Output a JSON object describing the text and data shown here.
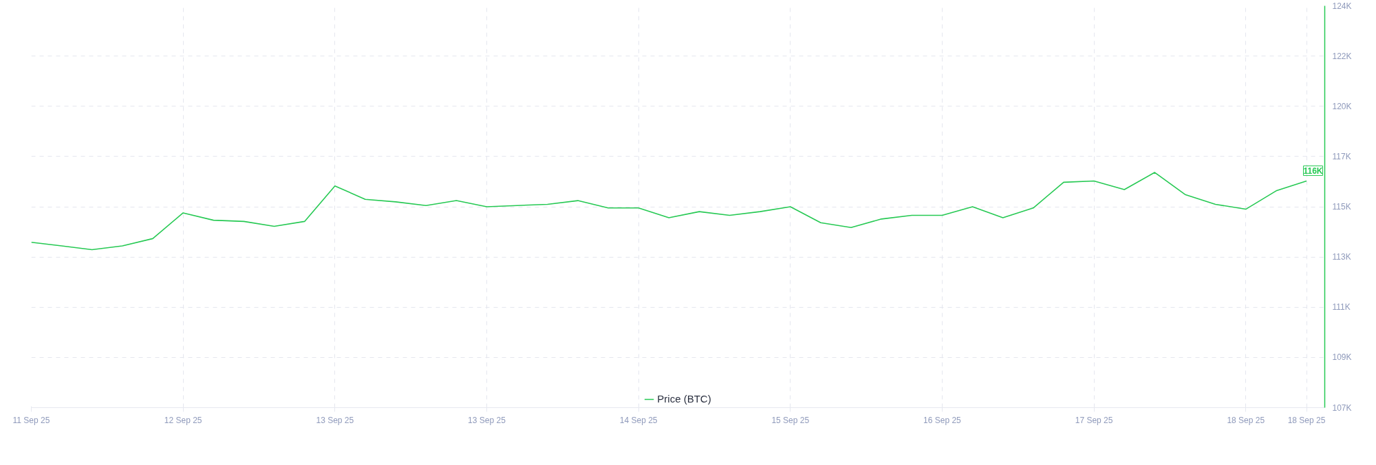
{
  "chart_data": {
    "type": "line",
    "categories": [
      "11 Sep 25",
      null,
      null,
      null,
      null,
      "12 Sep 25",
      null,
      null,
      null,
      null,
      "13 Sep 25",
      null,
      null,
      null,
      null,
      "13 Sep 25",
      null,
      null,
      null,
      null,
      "14 Sep 25",
      null,
      null,
      null,
      null,
      "15 Sep 25",
      null,
      null,
      null,
      null,
      "16 Sep 25",
      null,
      null,
      null,
      null,
      "17 Sep 25",
      null,
      null,
      null,
      null,
      "18 Sep 25",
      null,
      "18 Sep 25"
    ],
    "series": [
      {
        "name": "Price (BTC)",
        "color": "#26c953",
        "values": [
          113950,
          113800,
          113650,
          113800,
          114100,
          115150,
          114850,
          114800,
          114600,
          114800,
          116250,
          115700,
          115600,
          115450,
          115650,
          115400,
          115450,
          115500,
          115650,
          115350,
          115350,
          114950,
          115200,
          115050,
          115200,
          115400,
          114750,
          114550,
          114900,
          115050,
          115050,
          115400,
          114950,
          115350,
          116400,
          116450,
          116100,
          116800,
          115900,
          115500,
          115300,
          116050,
          116450
        ]
      }
    ],
    "ylim": [
      107200,
      123600
    ],
    "yticks": [
      {
        "value": 107200,
        "label": "107K"
      },
      {
        "value": 109250,
        "label": "109K"
      },
      {
        "value": 111300,
        "label": "111K"
      },
      {
        "value": 113350,
        "label": "113K"
      },
      {
        "value": 115400,
        "label": "115K"
      },
      {
        "value": 117450,
        "label": "117K"
      },
      {
        "value": 119500,
        "label": "120K"
      },
      {
        "value": 121550,
        "label": "122K"
      },
      {
        "value": 123600,
        "label": "124K"
      }
    ],
    "annotations": [
      "116K"
    ],
    "grid": true,
    "legend": "bottom",
    "line_style": "solid",
    "marker": "none"
  }
}
